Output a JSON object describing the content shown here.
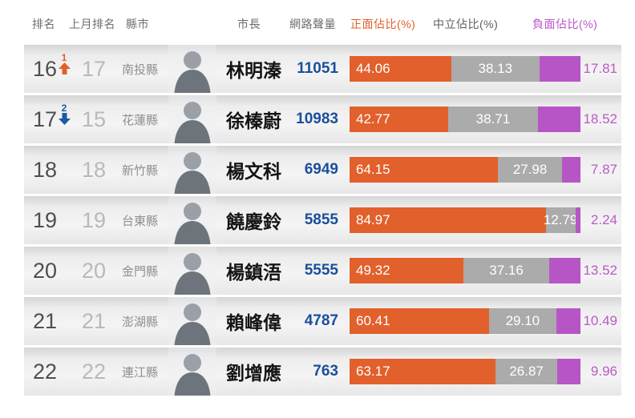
{
  "header": {
    "rank": "排名",
    "last_month_rank": "上月排名",
    "county": "縣市",
    "mayor": "市長",
    "volume": "網路聲量",
    "positive": "正面佔比(%)",
    "neutral": "中立佔比(%)",
    "negative": "負面佔比(%)"
  },
  "colors": {
    "positive_bar": "#E2602C",
    "neutral_bar": "#ABABAB",
    "negative_bar": "#B755C7",
    "volume_text": "#1B4F9C",
    "up_arrow": "#E2602C",
    "down_arrow": "#1B5AA5",
    "negative_label": "#B95CC4"
  },
  "rows": [
    {
      "rank": "16",
      "change": {
        "direction": "up",
        "amount": "1"
      },
      "last": "17",
      "county": "南投縣",
      "mayor": "林明溱",
      "volume": "11051",
      "positive": "44.06",
      "neutral": "38.13",
      "negative": "17.81"
    },
    {
      "rank": "17",
      "change": {
        "direction": "down",
        "amount": "2"
      },
      "last": "15",
      "county": "花蓮縣",
      "mayor": "徐榛蔚",
      "volume": "10983",
      "positive": "42.77",
      "neutral": "38.71",
      "negative": "18.52"
    },
    {
      "rank": "18",
      "last": "18",
      "county": "新竹縣",
      "mayor": "楊文科",
      "volume": "6949",
      "positive": "64.15",
      "neutral": "27.98",
      "negative": "7.87"
    },
    {
      "rank": "19",
      "last": "19",
      "county": "台東縣",
      "mayor": "饒慶鈴",
      "volume": "5855",
      "positive": "84.97",
      "neutral": "12.79",
      "negative": "2.24"
    },
    {
      "rank": "20",
      "last": "20",
      "county": "金門縣",
      "mayor": "楊鎮浯",
      "volume": "5555",
      "positive": "49.32",
      "neutral": "37.16",
      "negative": "13.52"
    },
    {
      "rank": "21",
      "last": "21",
      "county": "澎湖縣",
      "mayor": "賴峰偉",
      "volume": "4787",
      "positive": "60.41",
      "neutral": "29.10",
      "negative": "10.49"
    },
    {
      "rank": "22",
      "last": "22",
      "county": "連江縣",
      "mayor": "劉增應",
      "volume": "763",
      "positive": "63.17",
      "neutral": "26.87",
      "negative": "9.96"
    }
  ],
  "chart_data": {
    "type": "bar",
    "orientation": "horizontal",
    "stacked": true,
    "categories": [
      "林明溱",
      "徐榛蔚",
      "楊文科",
      "饒慶鈴",
      "楊鎮浯",
      "賴峰偉",
      "劉增應"
    ],
    "series": [
      {
        "name": "正面佔比(%)",
        "color": "#E2602C",
        "values": [
          44.06,
          42.77,
          64.15,
          84.97,
          49.32,
          60.41,
          63.17
        ]
      },
      {
        "name": "中立佔比(%)",
        "color": "#ABABAB",
        "values": [
          38.13,
          38.71,
          27.98,
          12.79,
          37.16,
          29.1,
          26.87
        ]
      },
      {
        "name": "負面佔比(%)",
        "color": "#B755C7",
        "values": [
          17.81,
          18.52,
          7.87,
          2.24,
          13.52,
          10.49,
          9.96
        ]
      }
    ],
    "extra_columns": {
      "排名": [
        "16",
        "17",
        "18",
        "19",
        "20",
        "21",
        "22"
      ],
      "上月排名": [
        "17",
        "15",
        "18",
        "19",
        "20",
        "21",
        "22"
      ],
      "縣市": [
        "南投縣",
        "花蓮縣",
        "新竹縣",
        "台東縣",
        "金門縣",
        "澎湖縣",
        "連江縣"
      ],
      "網路聲量": [
        11051,
        10983,
        6949,
        5855,
        5555,
        4787,
        763
      ]
    },
    "xlim": [
      0,
      100
    ],
    "legend_position": "top",
    "grid": false
  }
}
